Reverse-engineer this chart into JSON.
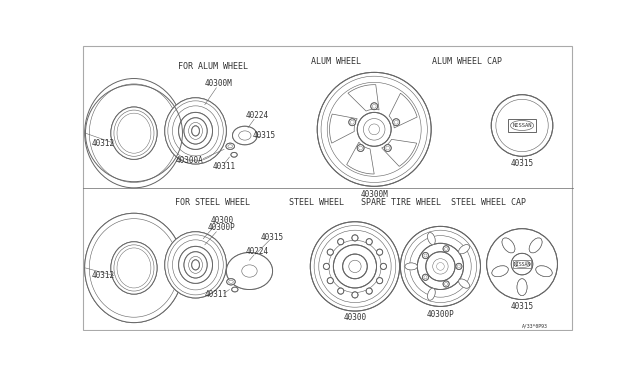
{
  "bg_color": "#ffffff",
  "line_color": "#666666",
  "lw": 0.7,
  "fs": 5.5,
  "labels": {
    "for_alum_wheel": "FOR ALUM WHEEL",
    "alum_wheel": "ALUM WHEEL",
    "alum_wheel_cap": "ALUM WHEEL CAP",
    "for_steel_wheel": "FOR STEEL WHEEL",
    "steel_wheel": "STEEL WHEEL",
    "spare_tire_wheel": "SPARE TIRE WHEEL",
    "steel_wheel_cap": "STEEL WHEEL CAP"
  },
  "parts": {
    "40312": "40312",
    "40300M": "40300M",
    "40224": "40224",
    "40300A": "40300A",
    "40311": "40311",
    "40315": "40315",
    "40300": "40300",
    "40300P": "40300P",
    "footnote": "A/33*0P93"
  }
}
